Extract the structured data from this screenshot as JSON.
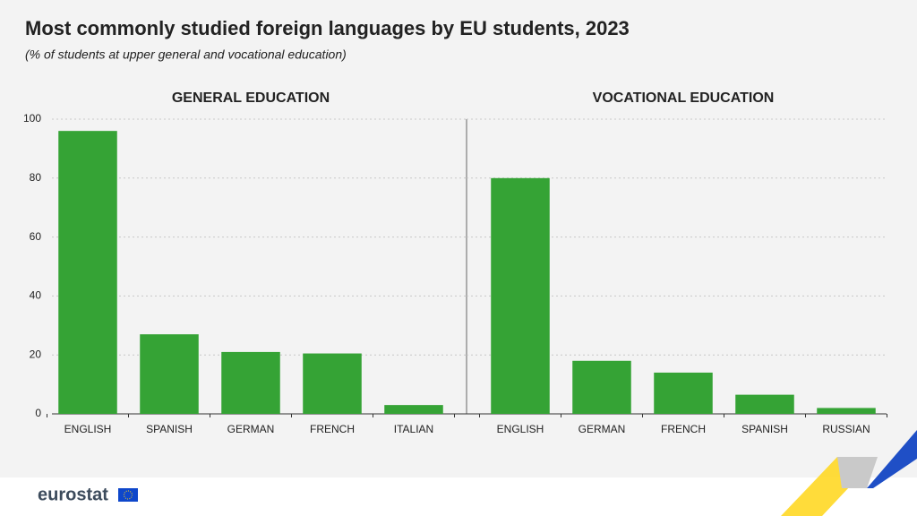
{
  "title": "Most commonly studied foreign languages by EU students, 2023",
  "subtitle": "(% of students at upper general and vocational education)",
  "logo": "eurostat",
  "chart_data": [
    {
      "type": "bar",
      "title": "GENERAL EDUCATION",
      "categories": [
        "ENGLISH",
        "SPANISH",
        "GERMAN",
        "FRENCH",
        "ITALIAN"
      ],
      "values": [
        96,
        27,
        21,
        20.5,
        3
      ],
      "color": "#35a335",
      "ylim": [
        0,
        100
      ],
      "yticks": [
        0,
        20,
        40,
        60,
        80,
        100
      ],
      "grid": true
    },
    {
      "type": "bar",
      "title": "VOCATIONAL EDUCATION",
      "categories": [
        "ENGLISH",
        "GERMAN",
        "FRENCH",
        "SPANISH",
        "RUSSIAN"
      ],
      "values": [
        80,
        18,
        14,
        6.5,
        2
      ],
      "color": "#35a335",
      "ylim": [
        0,
        100
      ],
      "yticks": [
        0,
        20,
        40,
        60,
        80,
        100
      ],
      "grid": true
    }
  ]
}
